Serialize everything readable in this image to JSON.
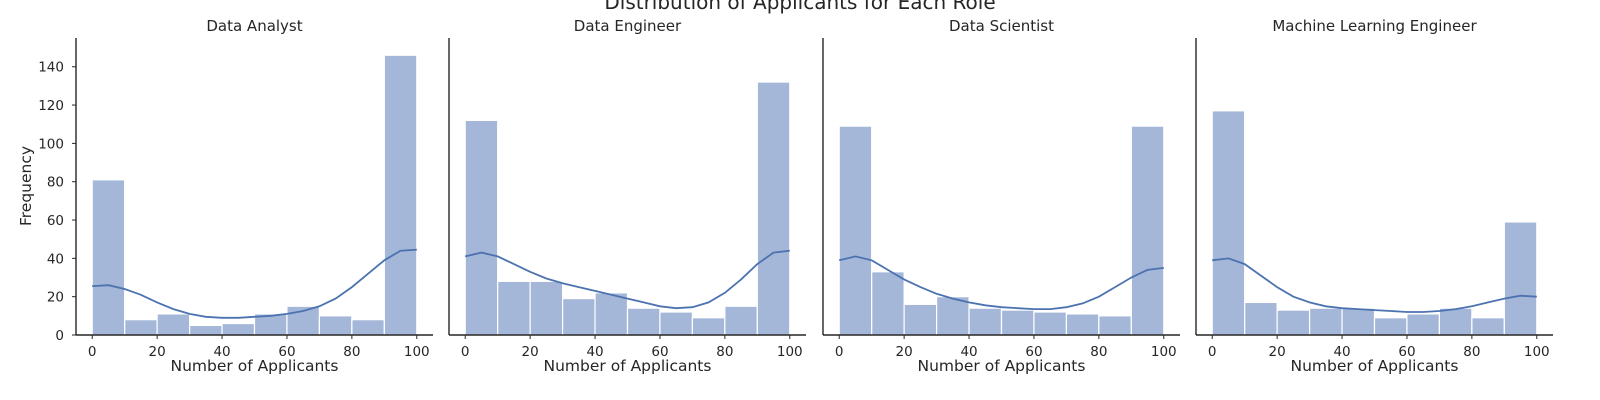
{
  "chart_data": {
    "type": "bar",
    "title": "Distribution of Applicants for Each Role",
    "xlabel": "Number of Applicants",
    "ylabel": "Frequency",
    "xlim": [
      -5,
      105
    ],
    "ylim": [
      0,
      155
    ],
    "x_ticks": [
      0,
      20,
      40,
      60,
      80,
      100
    ],
    "y_ticks": [
      0,
      20,
      40,
      60,
      80,
      100,
      120,
      140
    ],
    "grid": false,
    "bar_color": "#a5b7d9",
    "line_color": "#4c72b0",
    "panels": [
      {
        "title": "Data Analyst",
        "bins": [
          [
            0,
            10,
            81
          ],
          [
            10,
            20,
            8
          ],
          [
            20,
            30,
            11
          ],
          [
            30,
            40,
            5
          ],
          [
            40,
            50,
            6
          ],
          [
            50,
            60,
            11
          ],
          [
            60,
            70,
            15
          ],
          [
            70,
            80,
            10
          ],
          [
            80,
            90,
            8
          ],
          [
            90,
            100,
            146
          ]
        ],
        "kde": [
          [
            0,
            25.5
          ],
          [
            5,
            26
          ],
          [
            10,
            24
          ],
          [
            15,
            21
          ],
          [
            20,
            17
          ],
          [
            25,
            13.5
          ],
          [
            30,
            11
          ],
          [
            35,
            9.5
          ],
          [
            40,
            9
          ],
          [
            45,
            9
          ],
          [
            50,
            9.5
          ],
          [
            55,
            10
          ],
          [
            60,
            11
          ],
          [
            65,
            12.5
          ],
          [
            70,
            15
          ],
          [
            75,
            19
          ],
          [
            80,
            25
          ],
          [
            85,
            32
          ],
          [
            90,
            39
          ],
          [
            95,
            44
          ],
          [
            100,
            44.5
          ]
        ]
      },
      {
        "title": "Data Engineer",
        "bins": [
          [
            0,
            10,
            112
          ],
          [
            10,
            20,
            28
          ],
          [
            20,
            30,
            28
          ],
          [
            30,
            40,
            19
          ],
          [
            40,
            50,
            22
          ],
          [
            50,
            60,
            14
          ],
          [
            60,
            70,
            12
          ],
          [
            70,
            80,
            9
          ],
          [
            80,
            90,
            15
          ],
          [
            90,
            100,
            132
          ]
        ],
        "kde": [
          [
            0,
            41
          ],
          [
            5,
            43
          ],
          [
            10,
            41
          ],
          [
            15,
            37
          ],
          [
            20,
            33
          ],
          [
            25,
            29.5
          ],
          [
            30,
            27
          ],
          [
            35,
            25
          ],
          [
            40,
            23
          ],
          [
            45,
            21
          ],
          [
            50,
            19
          ],
          [
            55,
            17
          ],
          [
            60,
            15
          ],
          [
            65,
            14
          ],
          [
            70,
            14.5
          ],
          [
            75,
            17
          ],
          [
            80,
            22
          ],
          [
            85,
            29
          ],
          [
            90,
            37
          ],
          [
            95,
            43
          ],
          [
            100,
            44
          ]
        ]
      },
      {
        "title": "Data Scientist",
        "bins": [
          [
            0,
            10,
            109
          ],
          [
            10,
            20,
            33
          ],
          [
            20,
            30,
            16
          ],
          [
            30,
            40,
            20
          ],
          [
            40,
            50,
            14
          ],
          [
            50,
            60,
            13
          ],
          [
            60,
            70,
            12
          ],
          [
            70,
            80,
            11
          ],
          [
            80,
            90,
            10
          ],
          [
            90,
            100,
            109
          ]
        ],
        "kde": [
          [
            0,
            39
          ],
          [
            5,
            41
          ],
          [
            10,
            39
          ],
          [
            15,
            34
          ],
          [
            20,
            29
          ],
          [
            25,
            25
          ],
          [
            30,
            21.5
          ],
          [
            35,
            19
          ],
          [
            40,
            17
          ],
          [
            45,
            15.5
          ],
          [
            50,
            14.5
          ],
          [
            55,
            14
          ],
          [
            60,
            13.5
          ],
          [
            65,
            13.5
          ],
          [
            70,
            14.5
          ],
          [
            75,
            16.5
          ],
          [
            80,
            20
          ],
          [
            85,
            25
          ],
          [
            90,
            30
          ],
          [
            95,
            34
          ],
          [
            100,
            35
          ]
        ]
      },
      {
        "title": "Machine Learning Engineer",
        "bins": [
          [
            0,
            10,
            117
          ],
          [
            10,
            20,
            17
          ],
          [
            20,
            30,
            13
          ],
          [
            30,
            40,
            14
          ],
          [
            40,
            50,
            14
          ],
          [
            50,
            60,
            9
          ],
          [
            60,
            70,
            11
          ],
          [
            70,
            80,
            14
          ],
          [
            80,
            90,
            9
          ],
          [
            90,
            100,
            59
          ]
        ],
        "kde": [
          [
            0,
            39
          ],
          [
            5,
            40
          ],
          [
            10,
            37
          ],
          [
            15,
            31
          ],
          [
            20,
            25
          ],
          [
            25,
            20
          ],
          [
            30,
            17
          ],
          [
            35,
            15
          ],
          [
            40,
            14
          ],
          [
            45,
            13.5
          ],
          [
            50,
            13
          ],
          [
            55,
            12.5
          ],
          [
            60,
            12
          ],
          [
            65,
            12
          ],
          [
            70,
            12.5
          ],
          [
            75,
            13.5
          ],
          [
            80,
            15
          ],
          [
            85,
            17
          ],
          [
            90,
            19
          ],
          [
            95,
            20.5
          ],
          [
            100,
            20
          ]
        ]
      }
    ]
  }
}
